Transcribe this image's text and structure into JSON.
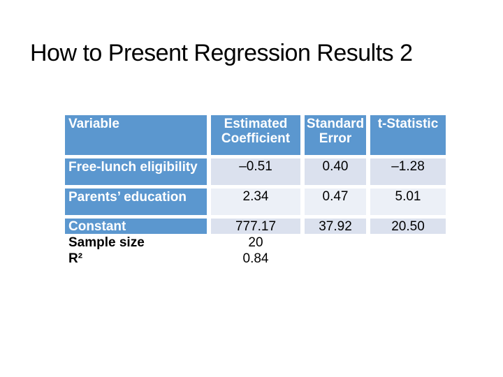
{
  "slide": {
    "title": "How to Present Regression Results 2"
  },
  "colors": {
    "header_blue": "#5b97cf",
    "band_light": "#dbe1ee",
    "band_lighter": "#ecf0f7",
    "header_text": "#ffffff",
    "body_text": "#000000"
  },
  "table": {
    "header": {
      "variable": "Variable",
      "coef_line1": "Estimated",
      "coef_line2": "Coefficient",
      "se_line1": "Standard",
      "se_line2": "Error",
      "tstat": "t-Statistic"
    },
    "rows": [
      {
        "variable": "Free-lunch eligibility",
        "coef": "–0.51",
        "se": "0.40",
        "t": "–1.28"
      },
      {
        "variable": "Parents’ education",
        "coef": "2.34",
        "se": "0.47",
        "t": "5.01"
      },
      {
        "variable": "Constant",
        "coef": "777.17",
        "se": "37.92",
        "t": "20.50"
      }
    ],
    "extra": [
      {
        "label": "Sample size",
        "value": "20"
      },
      {
        "label": "R²",
        "value": "0.84"
      }
    ]
  }
}
